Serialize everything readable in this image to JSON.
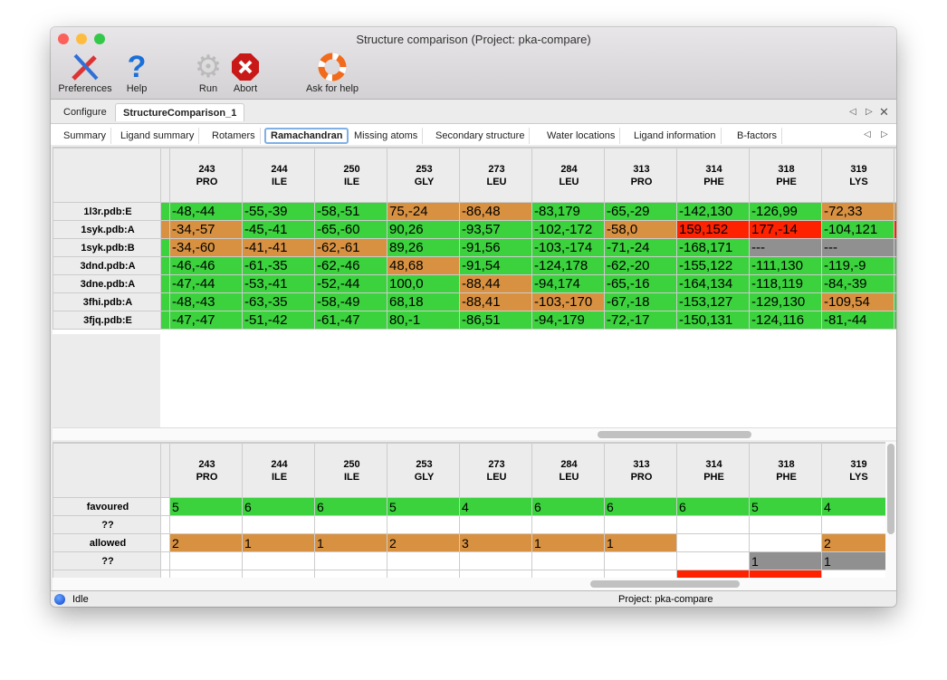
{
  "window": {
    "title": "Structure comparison (Project: pka-compare)"
  },
  "toolbar": [
    {
      "label": "Preferences",
      "icon": "preferences-icon"
    },
    {
      "label": "Help",
      "icon": "help-icon"
    },
    {
      "label": "Run",
      "icon": "run-gear-icon"
    },
    {
      "label": "Abort",
      "icon": "abort-icon"
    },
    {
      "label": "Ask for help",
      "icon": "lifebuoy-icon"
    }
  ],
  "main_tabs": [
    "Configure",
    "StructureComparison_1"
  ],
  "main_tab_active": "StructureComparison_1",
  "sub_tabs": [
    "Summary",
    "Ligand summary",
    "Rotamers",
    "Ramachandran",
    "Missing atoms",
    "Secondary structure",
    "Water locations",
    "Ligand information",
    "B-factors"
  ],
  "sub_tab_active": "Ramachandran",
  "colors": {
    "favoured": "#3bd23d",
    "allowed": "#d89141",
    "outlier": "#ff2200",
    "missing": "#909090"
  },
  "columns": [
    [
      "243",
      "PRO"
    ],
    [
      "244",
      "ILE"
    ],
    [
      "250",
      "ILE"
    ],
    [
      "253",
      "GLY"
    ],
    [
      "273",
      "LEU"
    ],
    [
      "284",
      "LEU"
    ],
    [
      "313",
      "PRO"
    ],
    [
      "314",
      "PHE"
    ],
    [
      "318",
      "PHE"
    ],
    [
      "319",
      "LYS"
    ]
  ],
  "top_table": {
    "edge_left": [
      "g",
      "a",
      "g",
      "g",
      "g",
      "g",
      "g"
    ],
    "edge_right": [
      "a",
      "r",
      "m",
      "g",
      "g",
      "g",
      "g"
    ],
    "rows": [
      {
        "label": "1l3r.pdb:E",
        "cells": [
          [
            "-48,-44",
            "g"
          ],
          [
            "-55,-39",
            "g"
          ],
          [
            "-58,-51",
            "g"
          ],
          [
            "75,-24",
            "a"
          ],
          [
            "-86,48",
            "a"
          ],
          [
            "-83,179",
            "g"
          ],
          [
            "-65,-29",
            "g"
          ],
          [
            "-142,130",
            "g"
          ],
          [
            "-126,99",
            "g"
          ],
          [
            "-72,33",
            "a"
          ]
        ]
      },
      {
        "label": "1syk.pdb:A",
        "cells": [
          [
            "-34,-57",
            "a"
          ],
          [
            "-45,-41",
            "g"
          ],
          [
            "-65,-60",
            "g"
          ],
          [
            "90,26",
            "g"
          ],
          [
            "-93,57",
            "g"
          ],
          [
            "-102,-172",
            "g"
          ],
          [
            "-58,0",
            "a"
          ],
          [
            "159,152",
            "r"
          ],
          [
            "177,-14",
            "r"
          ],
          [
            "-104,121",
            "g"
          ]
        ]
      },
      {
        "label": "1syk.pdb:B",
        "cells": [
          [
            "-34,-60",
            "a"
          ],
          [
            "-41,-41",
            "a"
          ],
          [
            "-62,-61",
            "a"
          ],
          [
            "89,26",
            "g"
          ],
          [
            "-91,56",
            "g"
          ],
          [
            "-103,-174",
            "g"
          ],
          [
            "-71,-24",
            "g"
          ],
          [
            "-168,171",
            "g"
          ],
          [
            "---",
            "m"
          ],
          [
            "---",
            "m"
          ]
        ]
      },
      {
        "label": "3dnd.pdb:A",
        "cells": [
          [
            "-46,-46",
            "g"
          ],
          [
            "-61,-35",
            "g"
          ],
          [
            "-62,-46",
            "g"
          ],
          [
            "48,68",
            "a"
          ],
          [
            "-91,54",
            "g"
          ],
          [
            "-124,178",
            "g"
          ],
          [
            "-62,-20",
            "g"
          ],
          [
            "-155,122",
            "g"
          ],
          [
            "-111,130",
            "g"
          ],
          [
            "-119,-9",
            "g"
          ]
        ]
      },
      {
        "label": "3dne.pdb:A",
        "cells": [
          [
            "-47,-44",
            "g"
          ],
          [
            "-53,-41",
            "g"
          ],
          [
            "-52,-44",
            "g"
          ],
          [
            "100,0",
            "g"
          ],
          [
            "-88,44",
            "a"
          ],
          [
            "-94,174",
            "g"
          ],
          [
            "-65,-16",
            "g"
          ],
          [
            "-164,134",
            "g"
          ],
          [
            "-118,119",
            "g"
          ],
          [
            "-84,-39",
            "g"
          ]
        ]
      },
      {
        "label": "3fhi.pdb:A",
        "cells": [
          [
            "-48,-43",
            "g"
          ],
          [
            "-63,-35",
            "g"
          ],
          [
            "-58,-49",
            "g"
          ],
          [
            "68,18",
            "g"
          ],
          [
            "-88,41",
            "a"
          ],
          [
            "-103,-170",
            "a"
          ],
          [
            "-67,-18",
            "g"
          ],
          [
            "-153,127",
            "g"
          ],
          [
            "-129,130",
            "g"
          ],
          [
            "-109,54",
            "a"
          ]
        ]
      },
      {
        "label": "3fjq.pdb:E",
        "cells": [
          [
            "-47,-47",
            "g"
          ],
          [
            "-51,-42",
            "g"
          ],
          [
            "-61,-47",
            "g"
          ],
          [
            "80,-1",
            "g"
          ],
          [
            "-86,51",
            "g"
          ],
          [
            "-94,-179",
            "g"
          ],
          [
            "-72,-17",
            "g"
          ],
          [
            "-150,131",
            "g"
          ],
          [
            "-124,116",
            "g"
          ],
          [
            "-81,-44",
            "g"
          ]
        ]
      }
    ]
  },
  "bottom_table": {
    "rows": [
      {
        "label": "favoured",
        "cells": [
          [
            "5",
            "g"
          ],
          [
            "6",
            "g"
          ],
          [
            "6",
            "g"
          ],
          [
            "5",
            "g"
          ],
          [
            "4",
            "g"
          ],
          [
            "6",
            "g"
          ],
          [
            "6",
            "g"
          ],
          [
            "6",
            "g"
          ],
          [
            "5",
            "g"
          ],
          [
            "4",
            "g"
          ]
        ]
      },
      {
        "label": "??",
        "cells": [
          [
            "",
            "w"
          ],
          [
            "",
            "w"
          ],
          [
            "",
            "w"
          ],
          [
            "",
            "w"
          ],
          [
            "",
            "w"
          ],
          [
            "",
            "w"
          ],
          [
            "",
            "w"
          ],
          [
            "",
            "w"
          ],
          [
            "",
            "w"
          ],
          [
            "",
            "w"
          ]
        ]
      },
      {
        "label": "allowed",
        "cells": [
          [
            "2",
            "a"
          ],
          [
            "1",
            "a"
          ],
          [
            "1",
            "a"
          ],
          [
            "2",
            "a"
          ],
          [
            "3",
            "a"
          ],
          [
            "1",
            "a"
          ],
          [
            "1",
            "a"
          ],
          [
            "",
            "w"
          ],
          [
            "",
            "w"
          ],
          [
            "2",
            "a"
          ]
        ]
      },
      {
        "label": "??",
        "cells": [
          [
            "",
            "w"
          ],
          [
            "",
            "w"
          ],
          [
            "",
            "w"
          ],
          [
            "",
            "w"
          ],
          [
            "",
            "w"
          ],
          [
            "",
            "w"
          ],
          [
            "",
            "w"
          ],
          [
            "",
            "w"
          ],
          [
            "1",
            "m"
          ],
          [
            "1",
            "m"
          ]
        ]
      },
      {
        "label": "",
        "cells": [
          [
            "",
            "w"
          ],
          [
            "",
            "w"
          ],
          [
            "",
            "w"
          ],
          [
            "",
            "w"
          ],
          [
            "",
            "w"
          ],
          [
            "",
            "w"
          ],
          [
            "",
            "w"
          ],
          [
            "",
            "r"
          ],
          [
            "",
            "r"
          ],
          [
            "",
            "w"
          ]
        ]
      }
    ]
  },
  "status": {
    "text": "Idle",
    "project": "Project: pka-compare"
  }
}
